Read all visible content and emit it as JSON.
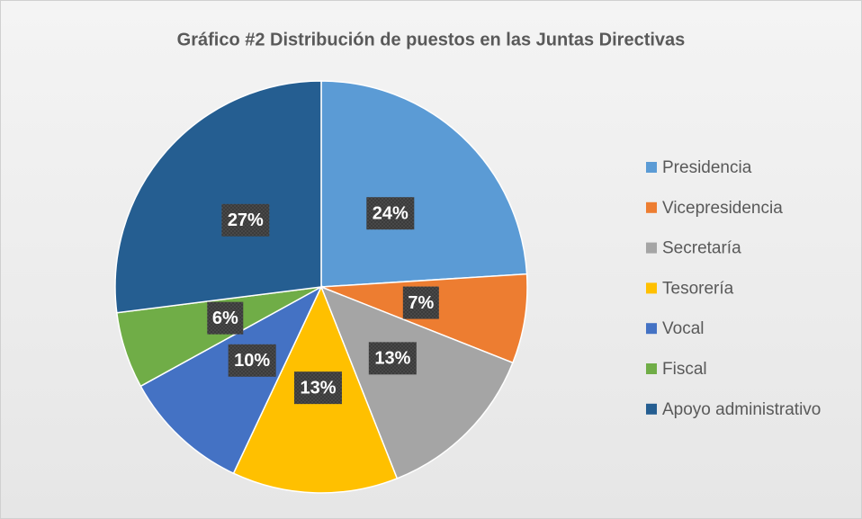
{
  "chart_data": {
    "type": "pie",
    "title": "Gráfico #2 Distribución de puestos en las Juntas Directivas",
    "categories": [
      "Presidencia",
      "Vicepresidencia",
      "Secretaría",
      "Tesorería",
      "Vocal",
      "Fiscal",
      "Apoyo administrativo"
    ],
    "values": [
      24,
      7,
      13,
      13,
      10,
      6,
      27
    ],
    "value_labels": [
      "24%",
      "7%",
      "13%",
      "13%",
      "10%",
      "6%",
      "27%"
    ],
    "colors": [
      "#5b9bd5",
      "#ed7d31",
      "#a5a5a5",
      "#ffc000",
      "#4472c4",
      "#70ad47",
      "#255e91"
    ],
    "legend": "right"
  }
}
